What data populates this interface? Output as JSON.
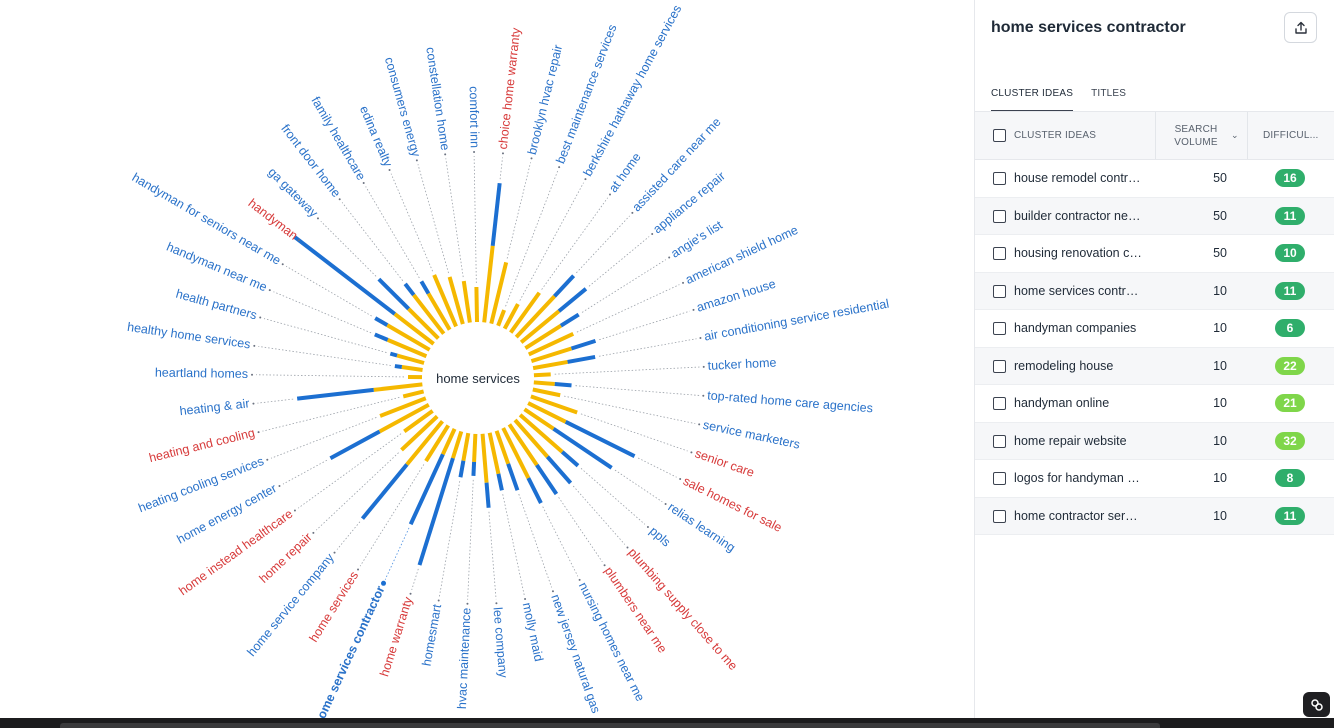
{
  "cloud": {
    "center_label": "home services",
    "highlighted": "home services contractor",
    "keywords": [
      {
        "label": "comfort inn",
        "color": "blue",
        "blue": 0.0,
        "yellow": 0.25
      },
      {
        "label": "choice home warranty",
        "color": "red",
        "blue": 0.45,
        "yellow": 0.55
      },
      {
        "label": "brooklyn hvac repair",
        "color": "blue",
        "blue": 0.0,
        "yellow": 0.45
      },
      {
        "label": "best maintenance services",
        "color": "blue",
        "blue": 0.0,
        "yellow": 0.12
      },
      {
        "label": "berkshire hathaway home services",
        "color": "blue",
        "blue": 0.0,
        "yellow": 0.2
      },
      {
        "label": "at home",
        "color": "blue",
        "blue": 0.0,
        "yellow": 0.35
      },
      {
        "label": "assisted care near me",
        "color": "blue",
        "blue": 0.2,
        "yellow": 0.4
      },
      {
        "label": "appliance repair",
        "color": "blue",
        "blue": 0.25,
        "yellow": 0.35
      },
      {
        "label": "angie's list",
        "color": "blue",
        "blue": 0.15,
        "yellow": 0.3
      },
      {
        "label": "american shield home",
        "color": "blue",
        "blue": 0.0,
        "yellow": 0.35
      },
      {
        "label": "amazon house",
        "color": "blue",
        "blue": 0.18,
        "yellow": 0.3
      },
      {
        "label": "air conditioning service residential",
        "color": "blue",
        "blue": 0.2,
        "yellow": 0.25
      },
      {
        "label": "tucker home",
        "color": "blue",
        "blue": 0.0,
        "yellow": 0.12
      },
      {
        "label": "top-rated home care agencies",
        "color": "blue",
        "blue": 0.12,
        "yellow": 0.15
      },
      {
        "label": "service marketers",
        "color": "blue",
        "blue": 0.0,
        "yellow": 0.2
      },
      {
        "label": "senior care",
        "color": "red",
        "blue": 0.0,
        "yellow": 0.35
      },
      {
        "label": "sale homes for sale",
        "color": "red",
        "blue": 0.55,
        "yellow": 0.3
      },
      {
        "label": "relias learning",
        "color": "blue",
        "blue": 0.5,
        "yellow": 0.25
      },
      {
        "label": "ppls",
        "color": "blue",
        "blue": 0.15,
        "yellow": 0.4
      },
      {
        "label": "plumbing supply close to me",
        "color": "red",
        "blue": 0.25,
        "yellow": 0.35
      },
      {
        "label": "plumbers near me",
        "color": "red",
        "blue": 0.25,
        "yellow": 0.35
      },
      {
        "label": "nursing homes near me",
        "color": "blue",
        "blue": 0.2,
        "yellow": 0.4
      },
      {
        "label": "new jersey natural gas",
        "color": "blue",
        "blue": 0.2,
        "yellow": 0.25
      },
      {
        "label": "molly maid",
        "color": "blue",
        "blue": 0.12,
        "yellow": 0.3
      },
      {
        "label": "lee company",
        "color": "blue",
        "blue": 0.18,
        "yellow": 0.35
      },
      {
        "label": "hvac maintenance",
        "color": "blue",
        "blue": 0.1,
        "yellow": 0.2
      },
      {
        "label": "homesmart",
        "color": "blue",
        "blue": 0.12,
        "yellow": 0.2
      },
      {
        "label": "home warranty",
        "color": "red",
        "blue": 0.8,
        "yellow": 0.2
      },
      {
        "label": "home services contractor",
        "color": "blue",
        "blue": 0.55,
        "yellow": 0.2
      },
      {
        "label": "home services",
        "color": "red",
        "blue": 0.0,
        "yellow": 0.3
      },
      {
        "label": "home service company",
        "color": "blue",
        "blue": 0.5,
        "yellow": 0.4
      },
      {
        "label": "home repair",
        "color": "red",
        "blue": 0.0,
        "yellow": 0.35
      },
      {
        "label": "home instead healthcare",
        "color": "red",
        "blue": 0.0,
        "yellow": 0.25
      },
      {
        "label": "home energy center",
        "color": "blue",
        "blue": 0.4,
        "yellow": 0.4
      },
      {
        "label": "heating cooling services",
        "color": "blue",
        "blue": 0.0,
        "yellow": 0.35
      },
      {
        "label": "heating and cooling",
        "color": "red",
        "blue": 0.0,
        "yellow": 0.15
      },
      {
        "label": "heating & air",
        "color": "blue",
        "blue": 0.55,
        "yellow": 0.35
      },
      {
        "label": "heartland homes",
        "color": "blue",
        "blue": 0.0,
        "yellow": 0.1
      },
      {
        "label": "healthy home services",
        "color": "blue",
        "blue": 0.05,
        "yellow": 0.15
      },
      {
        "label": "health partners",
        "color": "blue",
        "blue": 0.05,
        "yellow": 0.2
      },
      {
        "label": "handyman near me",
        "color": "blue",
        "blue": 0.1,
        "yellow": 0.3
      },
      {
        "label": "handyman for seniors near me",
        "color": "blue",
        "blue": 0.1,
        "yellow": 0.35
      },
      {
        "label": "handyman",
        "color": "red",
        "blue": 0.9,
        "yellow": 0.35
      },
      {
        "label": "ga gateway",
        "color": "blue",
        "blue": 0.3,
        "yellow": 0.3
      },
      {
        "label": "front door home",
        "color": "blue",
        "blue": 0.1,
        "yellow": 0.35
      },
      {
        "label": "family healthcare",
        "color": "blue",
        "blue": 0.1,
        "yellow": 0.3
      },
      {
        "label": "edina realty",
        "color": "blue",
        "blue": 0.0,
        "yellow": 0.4
      },
      {
        "label": "consumers energy",
        "color": "blue",
        "blue": 0.0,
        "yellow": 0.35
      },
      {
        "label": "constellation home",
        "color": "blue",
        "blue": 0.0,
        "yellow": 0.3
      }
    ]
  },
  "panel": {
    "title": "home services contractor",
    "export_icon": "upload-icon",
    "tabs": [
      {
        "label": "CLUSTER IDEAS",
        "active": true
      },
      {
        "label": "TITLES",
        "active": false
      }
    ],
    "columns": {
      "ideas": "CLUSTER IDEAS",
      "volume_line1": "SEARCH",
      "volume_line2": "VOLUME",
      "difficulty": "DIFFICUL..."
    },
    "rows": [
      {
        "keyword": "house remodel contractor",
        "volume": "50",
        "difficulty": "16",
        "color": "#2fae6b"
      },
      {
        "keyword": "builder contractor near me",
        "volume": "50",
        "difficulty": "11",
        "color": "#2fae6b"
      },
      {
        "keyword": "housing renovation contractor",
        "volume": "50",
        "difficulty": "10",
        "color": "#2fae6b"
      },
      {
        "keyword": "home services contractor",
        "volume": "10",
        "difficulty": "11",
        "color": "#2fae6b"
      },
      {
        "keyword": "handyman companies",
        "volume": "10",
        "difficulty": "6",
        "color": "#2fae6b"
      },
      {
        "keyword": "remodeling house",
        "volume": "10",
        "difficulty": "22",
        "color": "#7fd64a"
      },
      {
        "keyword": "handyman online",
        "volume": "10",
        "difficulty": "21",
        "color": "#7fd64a"
      },
      {
        "keyword": "home repair website",
        "volume": "10",
        "difficulty": "32",
        "color": "#7fd64a"
      },
      {
        "keyword": "logos for handyman business",
        "volume": "10",
        "difficulty": "8",
        "color": "#2fae6b"
      },
      {
        "keyword": "home contractor services",
        "volume": "10",
        "difficulty": "11",
        "color": "#2fae6b"
      }
    ]
  },
  "corner_icon": "link-icon"
}
